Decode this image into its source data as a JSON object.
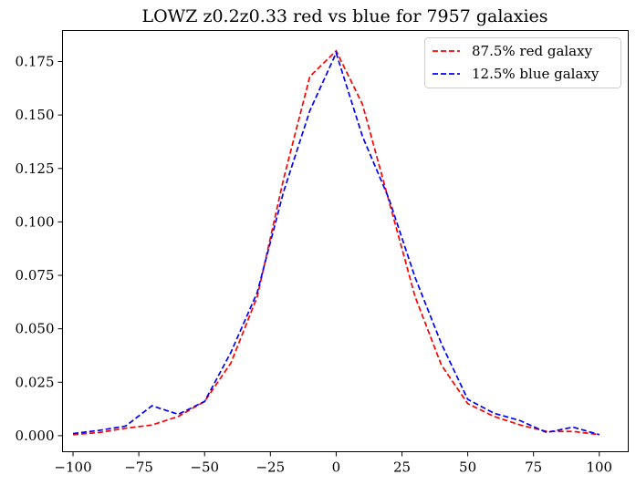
{
  "chart_data": {
    "type": "line",
    "title": "LOWZ z0.2z0.33 red vs blue for 7957 galaxies",
    "xlabel": "",
    "ylabel": "",
    "xlim": [
      -104,
      111
    ],
    "ylim": [
      -0.0075,
      0.1895
    ],
    "grid": false,
    "legend_placement": "top-right",
    "xticks": [
      -100,
      -75,
      -50,
      -25,
      0,
      25,
      50,
      75,
      100
    ],
    "xtick_labels": [
      "−100",
      "−75",
      "−50",
      "−25",
      "0",
      "25",
      "50",
      "75",
      "100"
    ],
    "yticks": [
      0.0,
      0.025,
      0.05,
      0.075,
      0.1,
      0.125,
      0.15,
      0.175
    ],
    "ytick_labels": [
      "0.000",
      "0.025",
      "0.050",
      "0.075",
      "0.100",
      "0.125",
      "0.150",
      "0.175"
    ],
    "x": [
      -100,
      -90,
      -80,
      -70,
      -60,
      -50,
      -40,
      -30,
      -20,
      -10,
      0,
      10,
      20,
      30,
      40,
      50,
      60,
      70,
      80,
      90,
      100
    ],
    "series": [
      {
        "name": "87.5% red galaxy",
        "color": "#ff0000",
        "values": [
          0.0005,
          0.0015,
          0.0035,
          0.005,
          0.009,
          0.016,
          0.034,
          0.065,
          0.12,
          0.168,
          0.18,
          0.155,
          0.11,
          0.065,
          0.033,
          0.015,
          0.009,
          0.005,
          0.002,
          0.002,
          0.0005
        ]
      },
      {
        "name": "12.5% blue galaxy",
        "color": "#0000ff",
        "values": [
          0.001,
          0.0025,
          0.0045,
          0.014,
          0.01,
          0.016,
          0.039,
          0.067,
          0.114,
          0.152,
          0.179,
          0.14,
          0.111,
          0.074,
          0.043,
          0.017,
          0.0105,
          0.007,
          0.0015,
          0.004,
          0.0005
        ]
      }
    ]
  }
}
